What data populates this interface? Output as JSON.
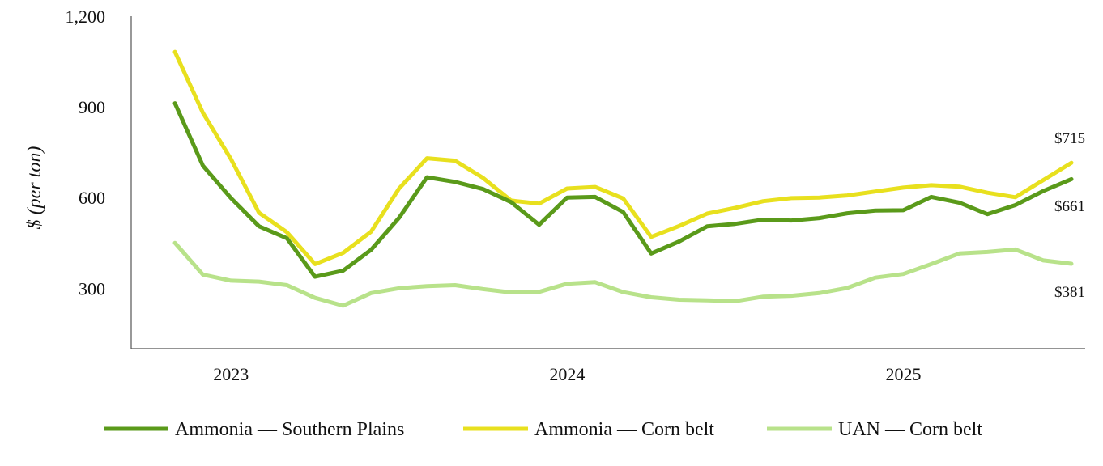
{
  "chart_data": {
    "type": "line",
    "title": "",
    "xlabel": "",
    "ylabel": "$ (per ton)",
    "ylim": [
      100,
      1200
    ],
    "yticks": [
      300,
      600,
      900,
      1200
    ],
    "ytick_labels": [
      "300",
      "600",
      "900",
      "1,200"
    ],
    "year_labels": [
      {
        "label": "2023",
        "index": 2
      },
      {
        "label": "2024",
        "index": 14
      },
      {
        "label": "2025",
        "index": 26
      }
    ],
    "series": [
      {
        "name": "Ammonia — Southern Plains",
        "color": "#5a9a1a",
        "values": [
          912,
          705,
          598,
          505,
          465,
          338,
          358,
          427,
          533,
          667,
          652,
          628,
          585,
          510,
          600,
          602,
          552,
          415,
          455,
          505,
          513,
          527,
          524,
          532,
          548,
          557,
          558,
          602,
          583,
          545,
          575,
          622,
          661
        ],
        "end_label": "$661"
      },
      {
        "name": "Ammonia — Corn belt",
        "color": "#e8e01e",
        "values": [
          1082,
          880,
          727,
          550,
          485,
          380,
          417,
          487,
          630,
          730,
          722,
          665,
          590,
          580,
          630,
          635,
          597,
          470,
          506,
          547,
          566,
          588,
          598,
          600,
          607,
          620,
          633,
          641,
          636,
          616,
          601,
          658,
          715
        ],
        "end_label": "$715"
      },
      {
        "name": "UAN — Corn belt",
        "color": "#b8e28a",
        "values": [
          450,
          345,
          325,
          322,
          310,
          268,
          242,
          284,
          300,
          307,
          310,
          297,
          286,
          288,
          315,
          320,
          287,
          270,
          262,
          260,
          257,
          272,
          275,
          284,
          301,
          335,
          347,
          380,
          415,
          420,
          428,
          392,
          381
        ],
        "end_label": "$381"
      }
    ],
    "legend_position": "bottom"
  }
}
